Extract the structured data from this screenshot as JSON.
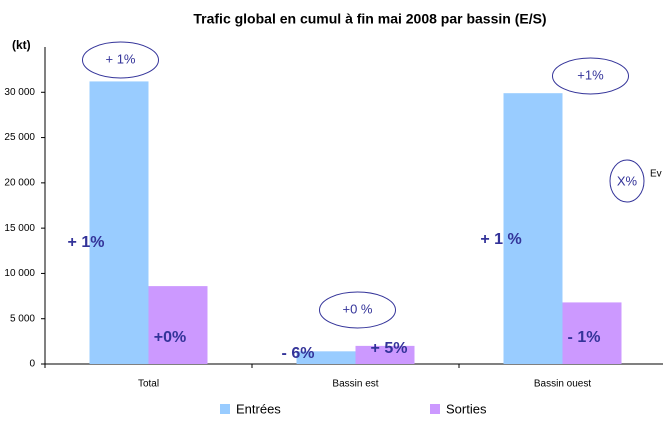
{
  "chart_data": {
    "type": "bar",
    "title": "Trafic global en cumul à fin mai 2008 par bassin (E/S)",
    "y_label": "(kt)",
    "categories": [
      "Total",
      "Bassin est",
      "Bassin ouest"
    ],
    "series": [
      {
        "name": "Entrées",
        "color": "#99ccff",
        "values": [
          31200,
          1400,
          29900
        ],
        "changes": [
          "+ 1%",
          "- 6%",
          "+ 1 %"
        ]
      },
      {
        "name": "Sorties",
        "color": "#cc99ff",
        "values": [
          8600,
          2000,
          6800
        ],
        "changes": [
          "+0%",
          "+ 5%",
          "- 1%"
        ]
      }
    ],
    "category_changes": [
      "+ 1%",
      "+0 %",
      "+1%"
    ],
    "key_note": {
      "symbol": "X%",
      "text": "Ev"
    },
    "ylim": [
      0,
      35000
    ],
    "yticks": [
      0,
      {
        "value": 5000,
        "label": "5 000"
      },
      {
        "value": 10000,
        "label": "10 000"
      },
      {
        "value": 15000,
        "label": "15 000"
      },
      {
        "value": 20000,
        "label": "20 000"
      },
      {
        "value": 25000,
        "label": "25 000"
      },
      {
        "value": 30000,
        "label": "30 000"
      }
    ],
    "legend": "bottom"
  }
}
